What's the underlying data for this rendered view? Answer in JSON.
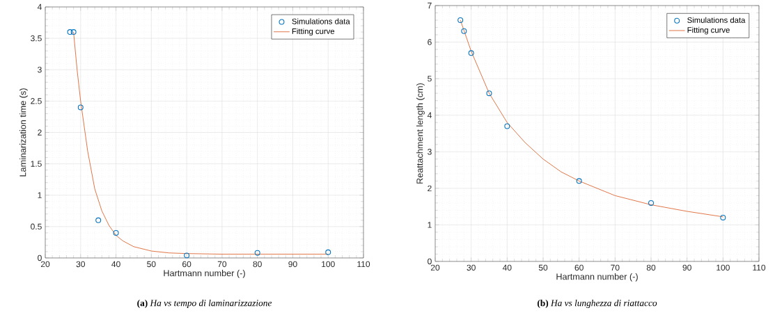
{
  "chart_data": [
    {
      "type": "scatter",
      "xlabel": "Hartmann number (-)",
      "ylabel": "Laminarization time (s)",
      "annotations": [
        "**(a)** *Ha vs tempo di laminarizzazione*"
      ],
      "xlim": [
        20,
        110
      ],
      "ylim": [
        0,
        4
      ],
      "xticks": [
        20,
        30,
        40,
        50,
        60,
        70,
        80,
        90,
        100,
        110
      ],
      "yticks": [
        0,
        0.5,
        1,
        1.5,
        2,
        2.5,
        3,
        3.5,
        4
      ],
      "grid": true,
      "legend": "top right",
      "series": [
        {
          "name": "Simulations data",
          "marker": "circle",
          "color": "#0072bd",
          "x": [
            27,
            28,
            30,
            35,
            40,
            60,
            80,
            100
          ],
          "values": [
            3.6,
            3.6,
            2.4,
            0.6,
            0.4,
            0.04,
            0.08,
            0.09
          ]
        },
        {
          "name": "Fitting curve",
          "type": "line",
          "color": "#d95319",
          "x": [
            28,
            29,
            30,
            32,
            34,
            36,
            38,
            40,
            42,
            45,
            50,
            55,
            60,
            70,
            80,
            100
          ],
          "values": [
            3.6,
            3.0,
            2.5,
            1.7,
            1.1,
            0.75,
            0.52,
            0.36,
            0.27,
            0.18,
            0.11,
            0.08,
            0.07,
            0.06,
            0.06,
            0.06
          ]
        }
      ]
    },
    {
      "type": "scatter",
      "xlabel": "Hartmann number (-)",
      "ylabel": "Reattachment length (cm)",
      "annotations": [
        "**(b)** *Ha vs lunghezza di riattacco*"
      ],
      "xlim": [
        20,
        110
      ],
      "ylim": [
        0,
        7
      ],
      "xticks": [
        20,
        30,
        40,
        50,
        60,
        70,
        80,
        90,
        100,
        110
      ],
      "yticks": [
        0,
        1,
        2,
        3,
        4,
        5,
        6,
        7
      ],
      "grid": true,
      "legend": "top right",
      "series": [
        {
          "name": "Simulations data",
          "marker": "circle",
          "color": "#0072bd",
          "x": [
            27,
            28,
            30,
            35,
            40,
            60,
            80,
            100
          ],
          "values": [
            6.6,
            6.3,
            5.7,
            4.6,
            3.7,
            2.2,
            1.6,
            1.2
          ]
        },
        {
          "name": "Fitting curve",
          "type": "line",
          "color": "#d95319",
          "x": [
            27,
            30,
            35,
            40,
            45,
            50,
            55,
            60,
            70,
            80,
            90,
            100
          ],
          "values": [
            6.6,
            5.75,
            4.6,
            3.8,
            3.25,
            2.8,
            2.45,
            2.2,
            1.8,
            1.55,
            1.37,
            1.22
          ]
        }
      ]
    }
  ]
}
